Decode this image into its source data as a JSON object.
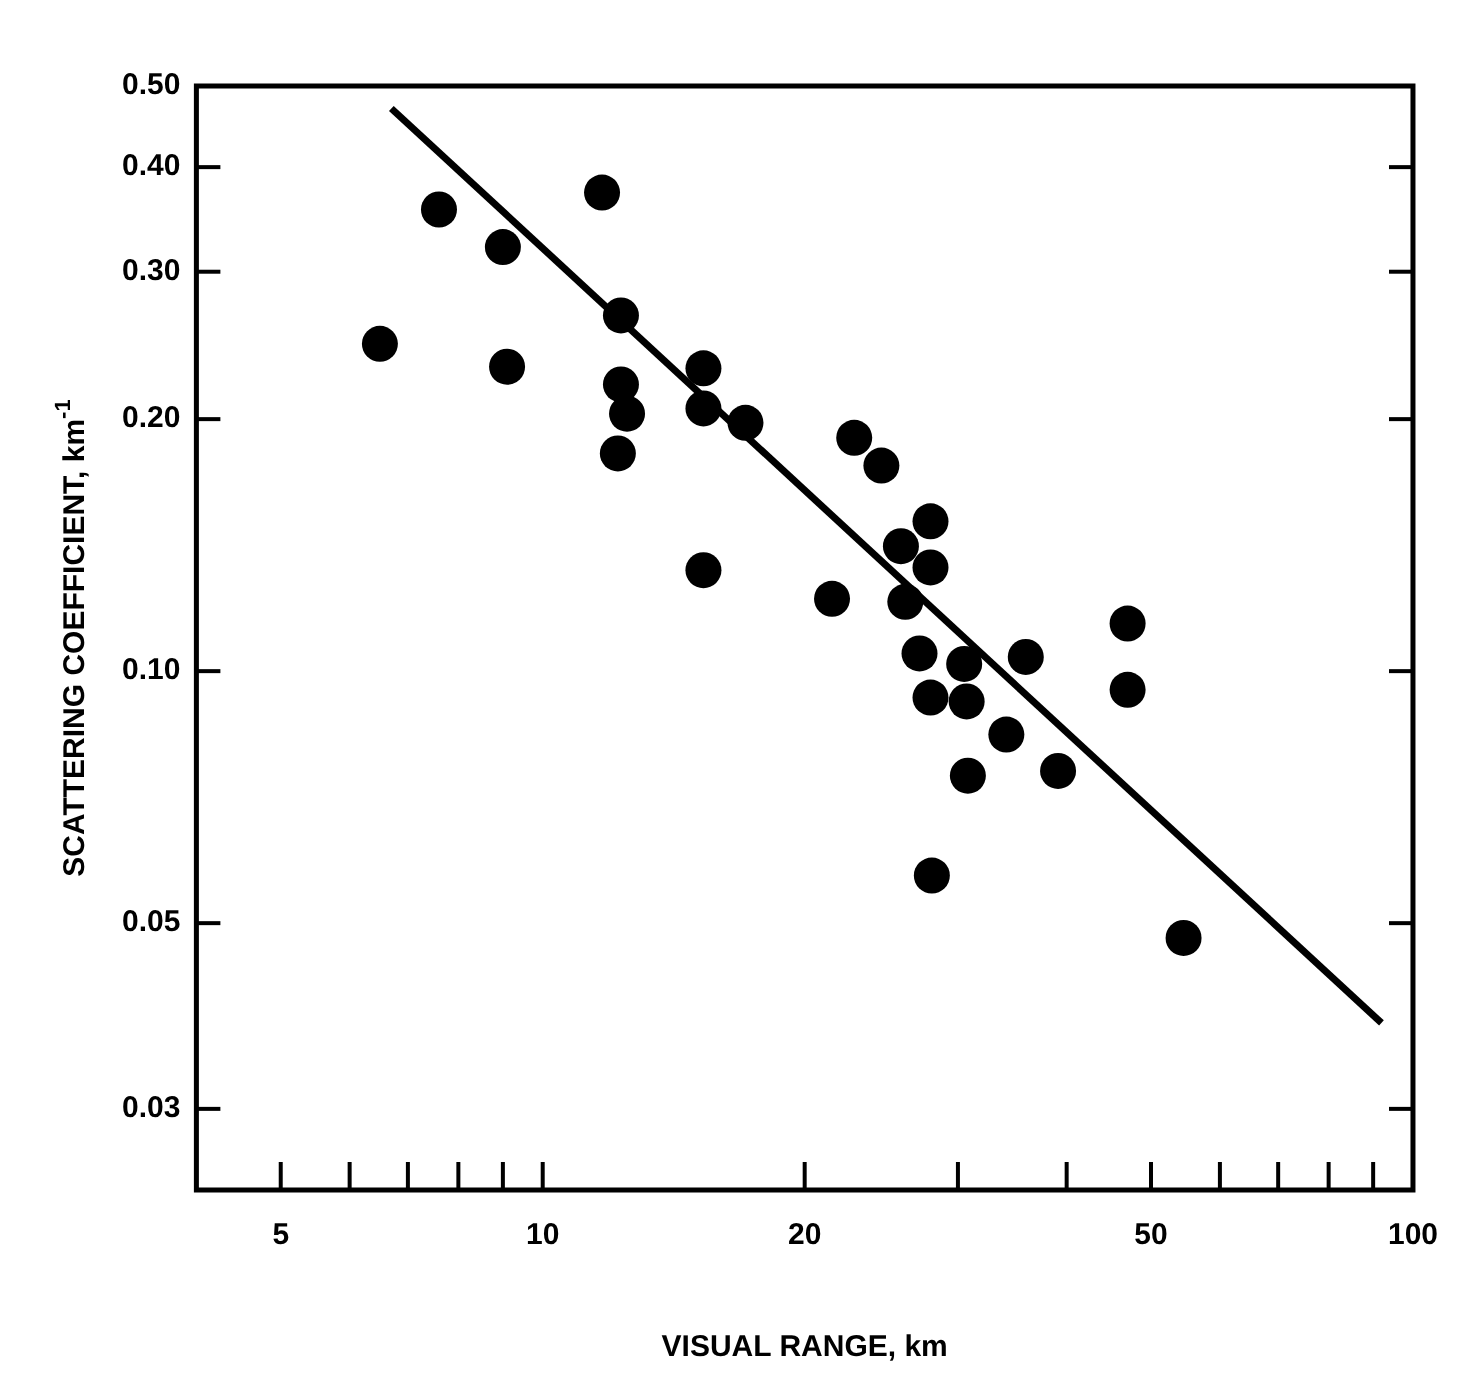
{
  "chart_data": {
    "type": "scatter",
    "xlabel": "VISUAL RANGE, km",
    "ylabel": "SCATTERING COEFFICIENT, km$^{-1}$",
    "log": "xy",
    "xlim": [
      4,
      100
    ],
    "xticks": [
      5,
      {
        "value": 6,
        "label": null
      },
      {
        "value": 7,
        "label": null
      },
      {
        "value": 8,
        "label": null
      },
      {
        "value": 9,
        "label": null
      },
      10,
      20,
      {
        "value": 30,
        "label": null
      },
      {
        "value": 40,
        "label": null
      },
      50,
      {
        "value": 60,
        "label": null
      },
      {
        "value": 70,
        "label": null
      },
      {
        "value": 80,
        "label": null
      },
      {
        "value": 90,
        "label": null
      },
      100
    ],
    "ylim": [
      0.024,
      0.5
    ],
    "yticks": [
      {
        "value": 0.03,
        "label": "0.03"
      },
      {
        "value": 0.05,
        "label": "0.05"
      },
      {
        "value": 0.1,
        "label": "0.10"
      },
      {
        "value": 0.2,
        "label": "0.20"
      },
      {
        "value": 0.3,
        "label": "0.30"
      },
      {
        "value": 0.4,
        "label": "0.40"
      },
      {
        "value": 0.5,
        "label": "0.50"
      }
    ],
    "grid": false,
    "legend": false,
    "marker": "circle",
    "series": [
      {
        "type": "scatter",
        "color": "#000000",
        "x": [
          6.5,
          7.6,
          9.0,
          9.1,
          11.7,
          12.3,
          12.3,
          12.5,
          12.2,
          15.3,
          15.3,
          17.1,
          15.3,
          22.8,
          24.5,
          27.9,
          25.8,
          27.9,
          21.5,
          26.1,
          47,
          27.1,
          30.5,
          35.9,
          27.9,
          30.7,
          47,
          34.1,
          30.8,
          39.1,
          28,
          54.5
        ],
        "values": [
          0.246,
          0.356,
          0.321,
          0.231,
          0.373,
          0.266,
          0.22,
          0.203,
          0.182,
          0.23,
          0.206,
          0.198,
          0.132,
          0.19,
          0.176,
          0.151,
          0.141,
          0.133,
          0.122,
          0.121,
          0.114,
          0.105,
          0.102,
          0.104,
          0.093,
          0.092,
          0.095,
          0.084,
          0.075,
          0.076,
          0.057,
          0.048
        ]
      },
      {
        "type": "line",
        "color": "#000000",
        "marker": "none",
        "x": [
          6.7,
          92
        ],
        "values": [
          0.47,
          0.038
        ]
      }
    ]
  }
}
